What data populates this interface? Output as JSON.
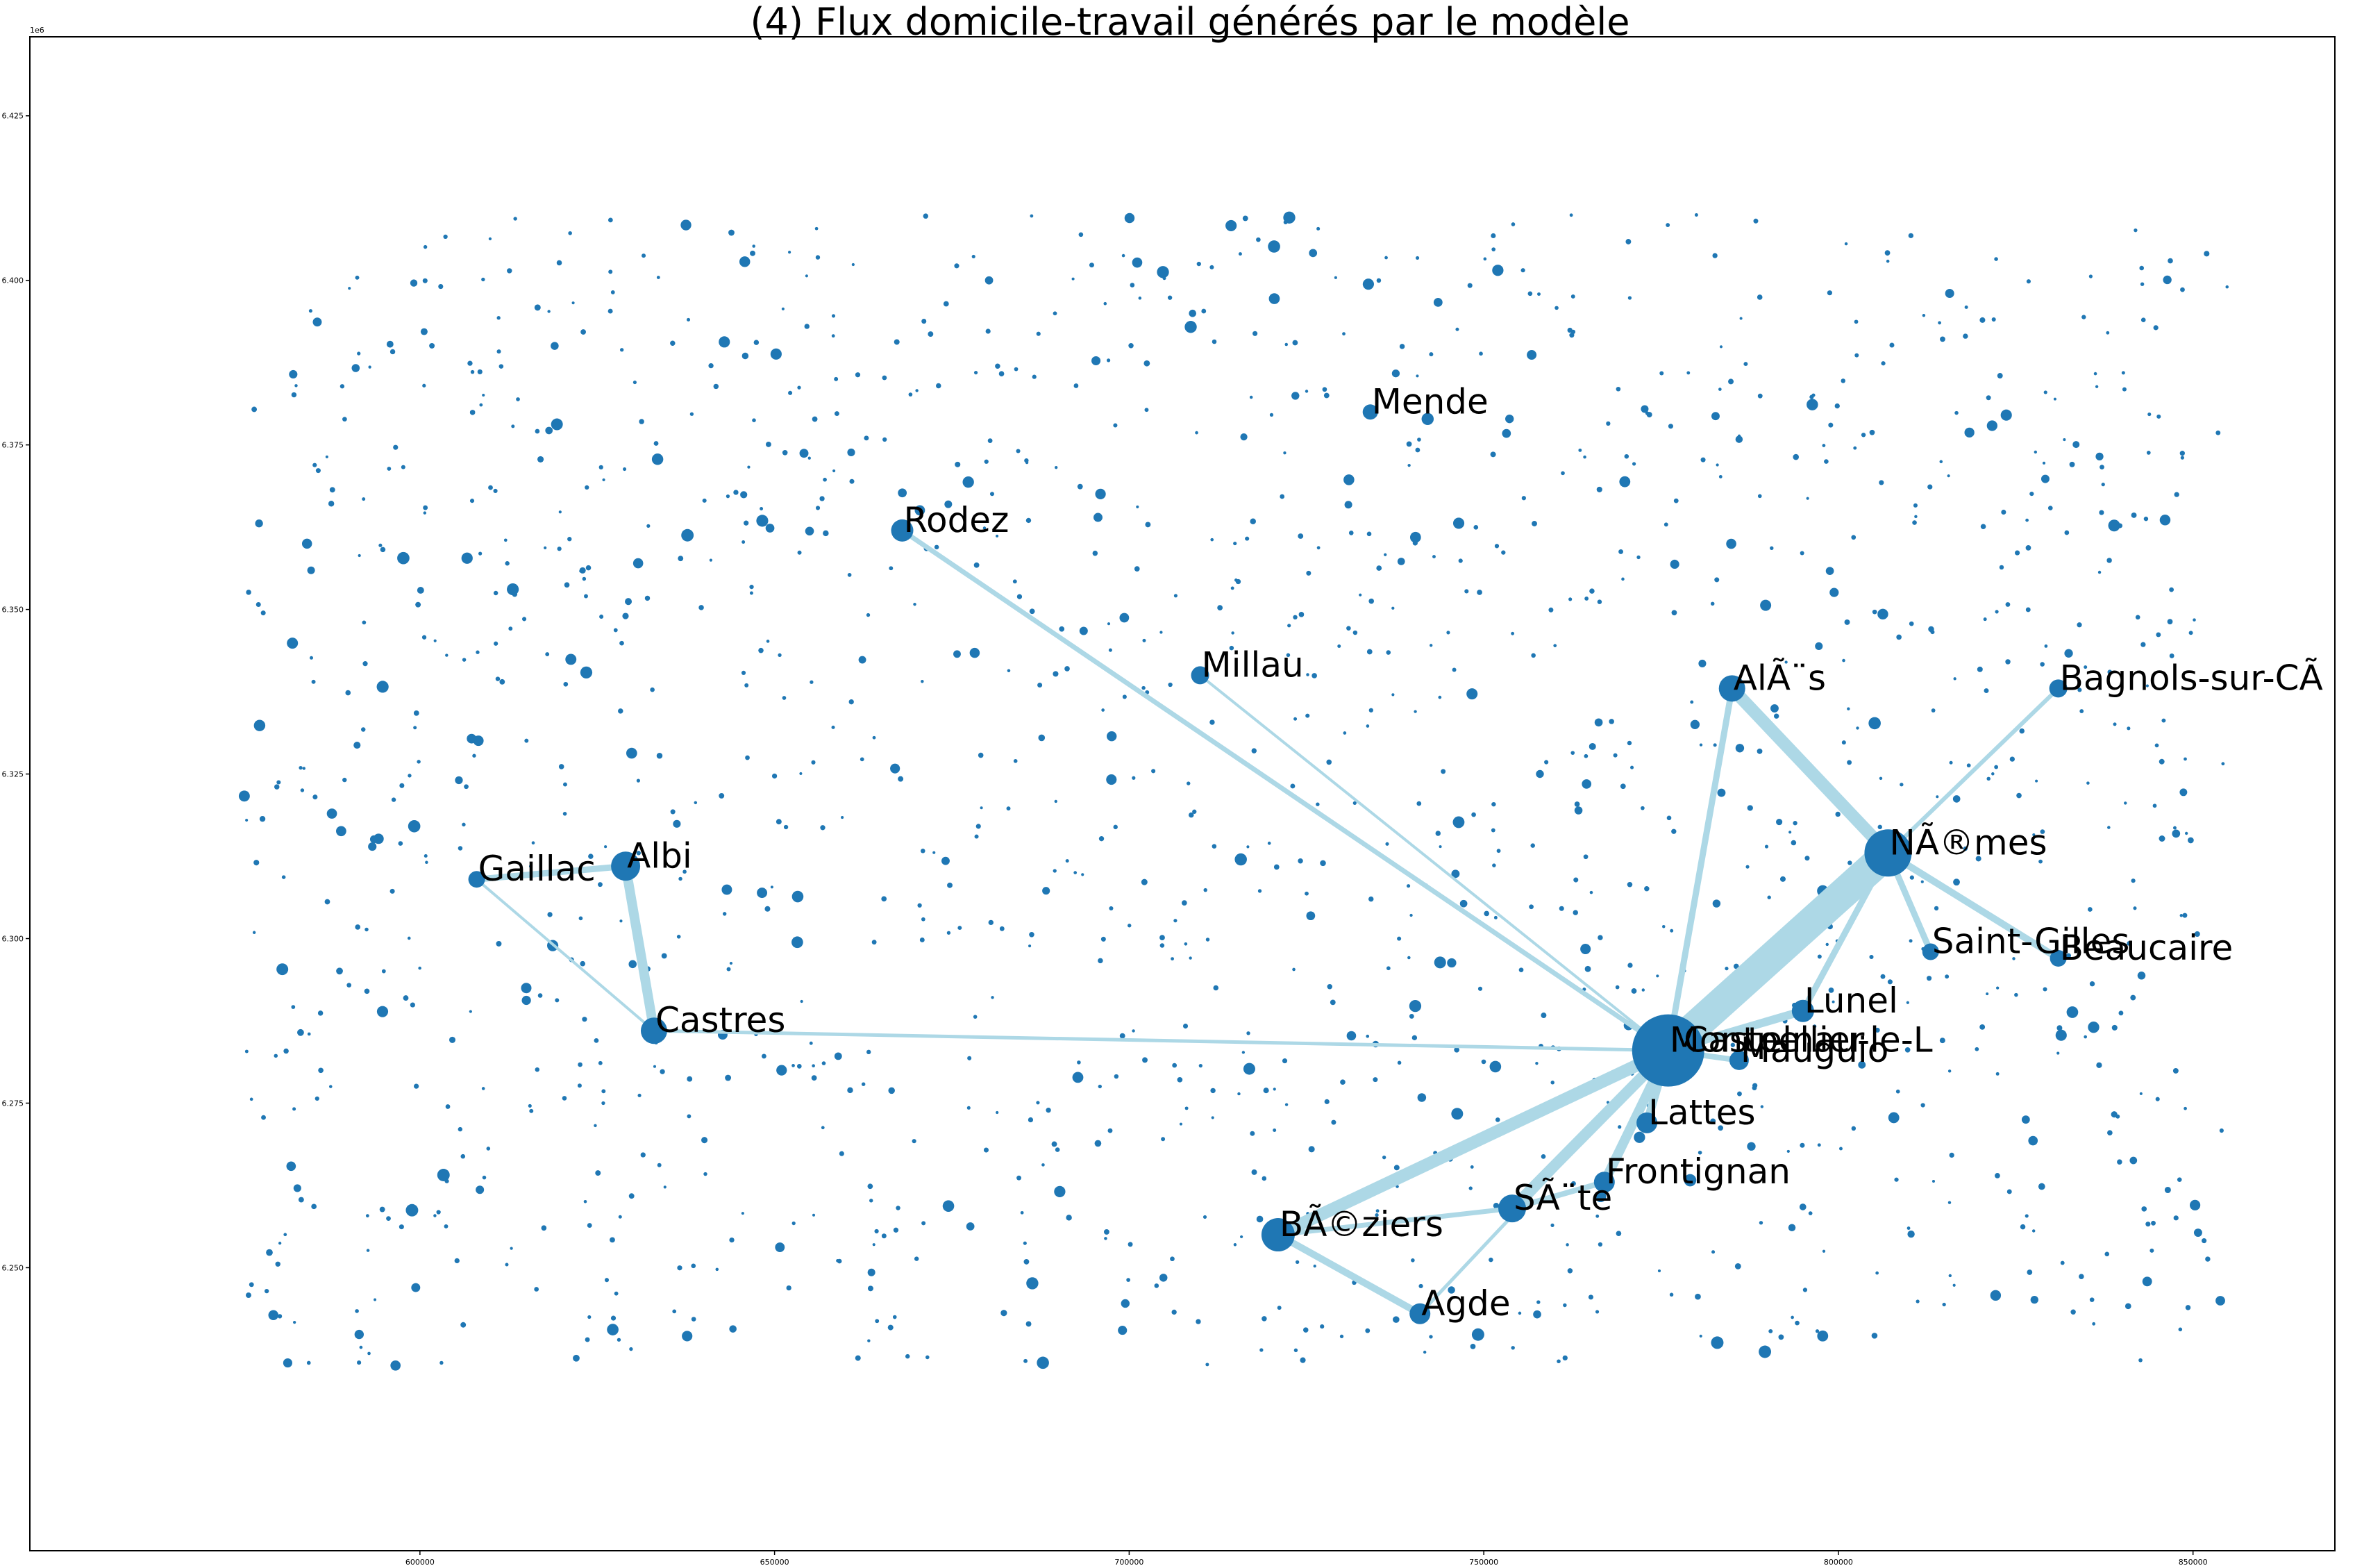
{
  "chart_data": {
    "type": "scatter",
    "title": "(4) Flux domicile-travail générés par le modèle",
    "xlabel": "",
    "ylabel": "",
    "y_offset_label": "1e6",
    "xlim": [
      545000,
      870000
    ],
    "ylim": [
      6207000,
      6437000
    ],
    "x_ticks": [
      600000,
      650000,
      700000,
      750000,
      800000,
      850000
    ],
    "y_ticks": [
      6250000,
      6275000,
      6300000,
      6325000,
      6350000,
      6375000,
      6400000,
      6425000
    ],
    "y_tick_labels": [
      "6.250",
      "6.275",
      "6.300",
      "6.325",
      "6.350",
      "6.375",
      "6.400",
      "6.425"
    ],
    "grid": false,
    "colors": {
      "node": "#1f77b4",
      "edge": "#add8e6"
    },
    "nodes": [
      {
        "label": "Montpellier",
        "x": 776000,
        "y": 6283000,
        "size": 52
      },
      {
        "label": "Castelnau-le-L",
        "x": 778000,
        "y": 6283000,
        "size": 14
      },
      {
        "label": "Mauguio",
        "x": 786000,
        "y": 6281500,
        "size": 14
      },
      {
        "label": "NÃ®mes",
        "x": 807000,
        "y": 6313000,
        "size": 34
      },
      {
        "label": "BÃ©ziers",
        "x": 721000,
        "y": 6255000,
        "size": 24
      },
      {
        "label": "SÃ¨te",
        "x": 754000,
        "y": 6259000,
        "size": 20
      },
      {
        "label": "Frontignan",
        "x": 767000,
        "y": 6263000,
        "size": 15
      },
      {
        "label": "Lattes",
        "x": 773000,
        "y": 6272000,
        "size": 15
      },
      {
        "label": "Lunel",
        "x": 795000,
        "y": 6289000,
        "size": 16
      },
      {
        "label": "AlÃ¨s",
        "x": 785000,
        "y": 6338000,
        "size": 19
      },
      {
        "label": "Bagnols-sur-CÃ",
        "x": 831000,
        "y": 6338000,
        "size": 13
      },
      {
        "label": "Saint-Gilles",
        "x": 813000,
        "y": 6298000,
        "size": 12
      },
      {
        "label": "Beaucaire",
        "x": 831000,
        "y": 6297000,
        "size": 12
      },
      {
        "label": "Agde",
        "x": 741000,
        "y": 6243000,
        "size": 15
      },
      {
        "label": "Castres",
        "x": 633000,
        "y": 6286000,
        "size": 19
      },
      {
        "label": "Albi",
        "x": 629000,
        "y": 6311000,
        "size": 21
      },
      {
        "label": "Gaillac",
        "x": 608000,
        "y": 6309000,
        "size": 12
      },
      {
        "label": "Rodez",
        "x": 668000,
        "y": 6362000,
        "size": 16
      },
      {
        "label": "Millau",
        "x": 710000,
        "y": 6340000,
        "size": 13
      },
      {
        "label": "Mende",
        "x": 734000,
        "y": 6380000,
        "size": 11
      }
    ],
    "edges": [
      {
        "from": "Montpellier",
        "to": "NÃ®mes",
        "weight": 44
      },
      {
        "from": "Montpellier",
        "to": "BÃ©ziers",
        "weight": 18
      },
      {
        "from": "Montpellier",
        "to": "SÃ¨te",
        "weight": 16
      },
      {
        "from": "Montpellier",
        "to": "Frontignan",
        "weight": 14
      },
      {
        "from": "Montpellier",
        "to": "Lattes",
        "weight": 12
      },
      {
        "from": "Montpellier",
        "to": "Lunel",
        "weight": 12
      },
      {
        "from": "Montpellier",
        "to": "AlÃ¨s",
        "weight": 9
      },
      {
        "from": "Montpellier",
        "to": "Mauguio",
        "weight": 8
      },
      {
        "from": "Montpellier",
        "to": "Rodez",
        "weight": 7
      },
      {
        "from": "Montpellier",
        "to": "Millau",
        "weight": 4
      },
      {
        "from": "Montpellier",
        "to": "Castres",
        "weight": 5
      },
      {
        "from": "Montpellier",
        "to": "Agde",
        "weight": 5
      },
      {
        "from": "NÃ®mes",
        "to": "AlÃ¨s",
        "weight": 18
      },
      {
        "from": "NÃ®mes",
        "to": "Saint-Gilles",
        "weight": 9
      },
      {
        "from": "NÃ®mes",
        "to": "Beaucaire",
        "weight": 10
      },
      {
        "from": "NÃ®mes",
        "to": "Bagnols-sur-CÃ",
        "weight": 6
      },
      {
        "from": "NÃ®mes",
        "to": "Lunel",
        "weight": 9
      },
      {
        "from": "BÃ©ziers",
        "to": "Agde",
        "weight": 10
      },
      {
        "from": "BÃ©ziers",
        "to": "SÃ¨te",
        "weight": 7
      },
      {
        "from": "SÃ¨te",
        "to": "Frontignan",
        "weight": 8
      },
      {
        "from": "Castres",
        "to": "Albi",
        "weight": 14
      },
      {
        "from": "Albi",
        "to": "Gaillac",
        "weight": 9
      },
      {
        "from": "Castres",
        "to": "Gaillac",
        "weight": 4
      }
    ]
  }
}
